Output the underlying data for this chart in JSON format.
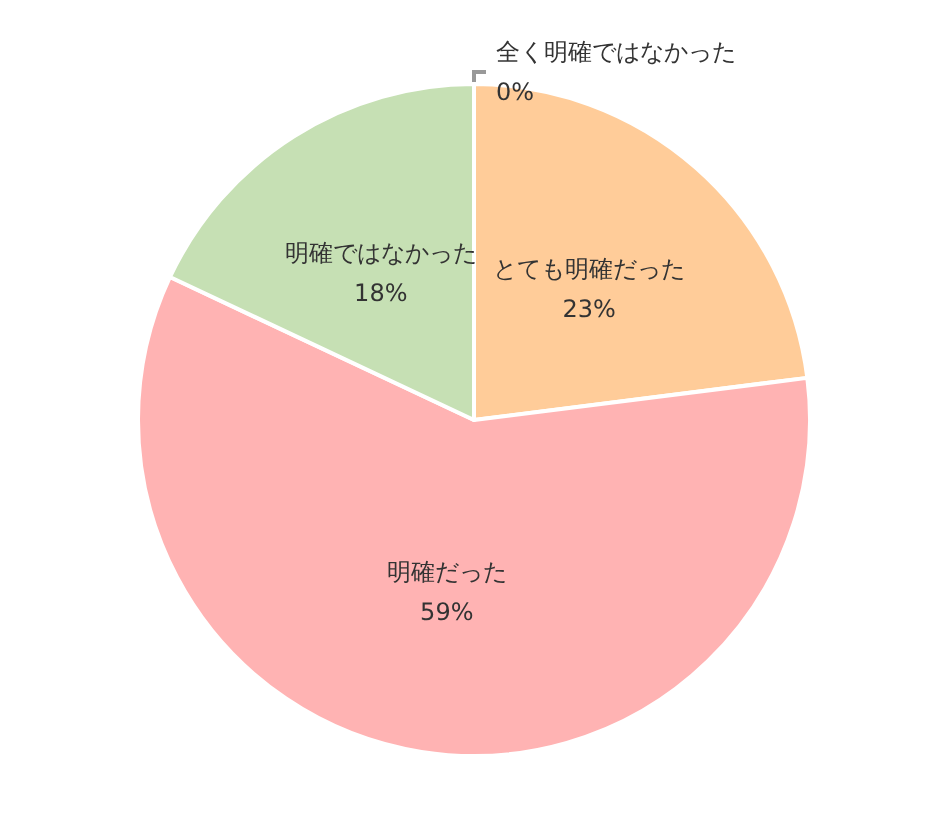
{
  "chart_data": {
    "type": "pie",
    "categories": [
      "とても明確だった",
      "明確だった",
      "明確ではなかった",
      "全く明確ではなかった"
    ],
    "values": [
      23,
      59,
      18,
      0
    ],
    "colors": [
      "#ffcc99",
      "#ffb3b3",
      "#c6e0b4",
      "#b4c7e7"
    ],
    "value_labels": [
      "23%",
      "59%",
      "18%",
      "0%"
    ],
    "legend": false
  }
}
